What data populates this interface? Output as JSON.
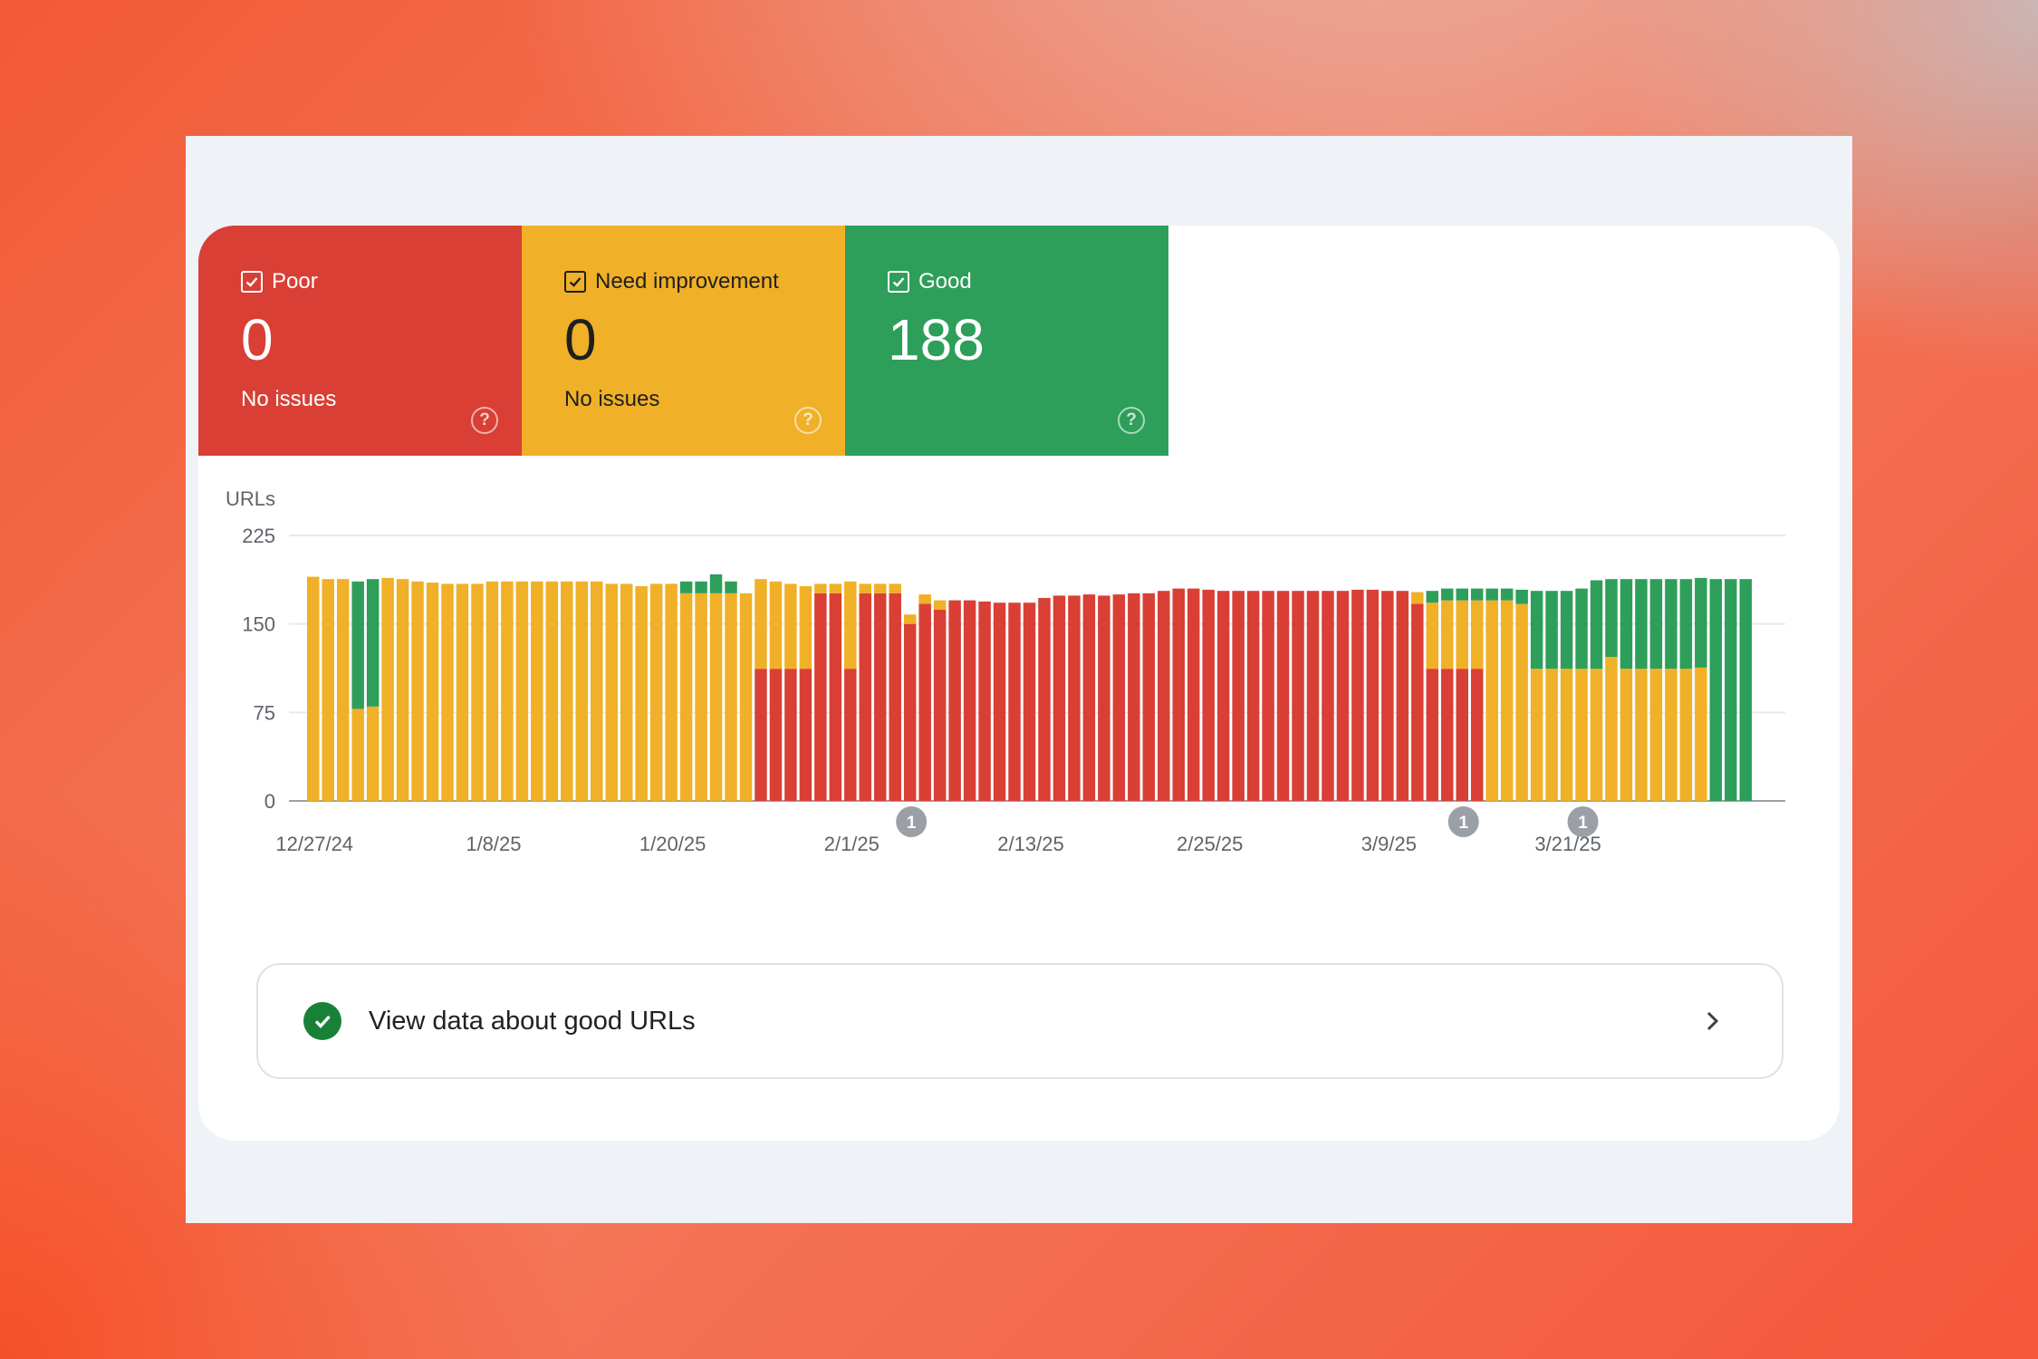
{
  "tiles": {
    "poor": {
      "label": "Poor",
      "count": "0",
      "sub": "No issues",
      "color": "#d93f35"
    },
    "need": {
      "label": "Need improvement",
      "count": "0",
      "sub": "No issues",
      "color": "#f0b027"
    },
    "good": {
      "label": "Good",
      "count": "188",
      "color": "#2e9e5b"
    }
  },
  "view_row": {
    "label": "View data about good URLs"
  },
  "chart_data": {
    "type": "bar",
    "stacked": true,
    "ylabel": "URLs",
    "ylim": [
      0,
      225
    ],
    "yticks": [
      0,
      75,
      150,
      225
    ],
    "grid": true,
    "x_tick_labels": [
      "12/27/24",
      "1/8/25",
      "1/20/25",
      "2/1/25",
      "2/13/25",
      "2/25/25",
      "3/9/25",
      "3/21/25"
    ],
    "x_start": "12/27/24",
    "series": [
      {
        "key": "poor",
        "color": "#d93f35",
        "values": [
          0,
          0,
          0,
          0,
          0,
          0,
          0,
          0,
          0,
          0,
          0,
          0,
          0,
          0,
          0,
          0,
          0,
          0,
          0,
          0,
          0,
          0,
          0,
          0,
          0,
          0,
          0,
          0,
          0,
          0,
          112,
          112,
          112,
          112,
          176,
          176,
          112,
          176,
          176,
          176,
          150,
          167,
          162,
          170,
          170,
          169,
          168,
          168,
          168,
          172,
          174,
          174,
          175,
          174,
          175,
          176,
          176,
          178,
          180,
          180,
          179,
          178,
          178,
          178,
          178,
          178,
          178,
          178,
          178,
          178,
          179,
          179,
          178,
          178,
          167,
          112,
          112,
          112,
          112,
          0,
          0,
          0,
          0,
          0,
          0,
          0,
          0,
          0,
          0,
          0,
          0,
          0,
          0,
          0,
          0,
          0,
          0
        ]
      },
      {
        "key": "need",
        "color": "#f0b027",
        "values": [
          190,
          188,
          188,
          78,
          80,
          189,
          188,
          186,
          185,
          184,
          184,
          184,
          186,
          186,
          186,
          186,
          186,
          186,
          186,
          186,
          184,
          184,
          182,
          184,
          184,
          176,
          176,
          176,
          176,
          176,
          76,
          74,
          72,
          70,
          8,
          8,
          74,
          8,
          8,
          8,
          8,
          8,
          8,
          0,
          0,
          0,
          0,
          0,
          0,
          0,
          0,
          0,
          0,
          0,
          0,
          0,
          0,
          0,
          0,
          0,
          0,
          0,
          0,
          0,
          0,
          0,
          0,
          0,
          0,
          0,
          0,
          0,
          0,
          0,
          10,
          56,
          58,
          58,
          58,
          170,
          170,
          167,
          112,
          112,
          112,
          112,
          112,
          122,
          112,
          112,
          112,
          112,
          112,
          113,
          0,
          0,
          0
        ]
      },
      {
        "key": "good",
        "color": "#2e9e5b",
        "values": [
          0,
          0,
          0,
          108,
          108,
          0,
          0,
          0,
          0,
          0,
          0,
          0,
          0,
          0,
          0,
          0,
          0,
          0,
          0,
          0,
          0,
          0,
          0,
          0,
          0,
          10,
          10,
          16,
          10,
          0,
          0,
          0,
          0,
          0,
          0,
          0,
          0,
          0,
          0,
          0,
          0,
          0,
          0,
          0,
          0,
          0,
          0,
          0,
          0,
          0,
          0,
          0,
          0,
          0,
          0,
          0,
          0,
          0,
          0,
          0,
          0,
          0,
          0,
          0,
          0,
          0,
          0,
          0,
          0,
          0,
          0,
          0,
          0,
          0,
          0,
          10,
          10,
          10,
          10,
          10,
          10,
          12,
          66,
          66,
          66,
          68,
          75,
          66,
          76,
          76,
          76,
          76,
          76,
          76,
          188,
          188,
          188
        ]
      }
    ],
    "annotations": [
      {
        "date": "2/5/25",
        "label": "1"
      },
      {
        "date": "3/14/25",
        "label": "1"
      },
      {
        "date": "3/22/25",
        "label": "1"
      }
    ]
  }
}
